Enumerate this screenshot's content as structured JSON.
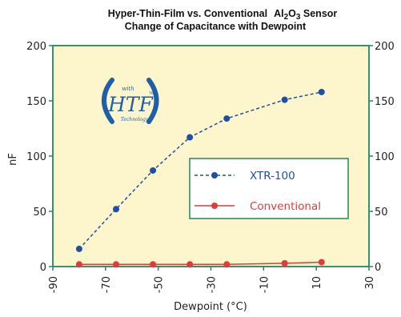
{
  "chart_data": {
    "type": "line",
    "title_line1": "Hyper-Thin-Film vs. Conventional",
    "title_chem": {
      "a": "Al",
      "a_sub": "2",
      "b": "O",
      "b_sub": "3"
    },
    "title_suffix": " Sensor",
    "title_line2": "Change of Capacitance with Dewpoint",
    "xlabel": "Dewpoint (°C)",
    "ylabel": "nF",
    "xlim": [
      -90,
      30
    ],
    "ylim": [
      0,
      200
    ],
    "x_ticks": [
      "-90",
      "-70",
      "-50",
      "-30",
      "-10",
      "10",
      "30"
    ],
    "x_tick_values": [
      -90,
      -70,
      -50,
      -30,
      -10,
      10,
      30
    ],
    "y_ticks_left": [
      "0",
      "50",
      "100",
      "150",
      "200"
    ],
    "y_ticks_right": [
      "0",
      "50",
      "100",
      "150",
      "200"
    ],
    "y_tick_values": [
      0,
      50,
      100,
      150,
      200
    ],
    "legend_position": "center-right",
    "plot_background": "#fdf5cc",
    "axis_color": "#1e8a5a",
    "series": [
      {
        "name": "XTR-100",
        "color": "#1f4fa3",
        "style": "dashed",
        "x": [
          -80,
          -66,
          -52,
          -38,
          -24,
          -2,
          12
        ],
        "y": [
          16,
          52,
          87,
          117,
          134,
          151,
          158
        ]
      },
      {
        "name": "Conventional",
        "color": "#e2393a",
        "style": "solid",
        "x": [
          -80,
          -66,
          -52,
          -38,
          -24,
          -2,
          12
        ],
        "y": [
          2,
          2,
          2,
          2,
          2,
          3,
          4
        ]
      }
    ]
  },
  "logo": {
    "top_text": "with",
    "main_text": "HTF",
    "tm_text": "TM",
    "bottom_text": "Technology",
    "color": "#1f5fa8"
  }
}
